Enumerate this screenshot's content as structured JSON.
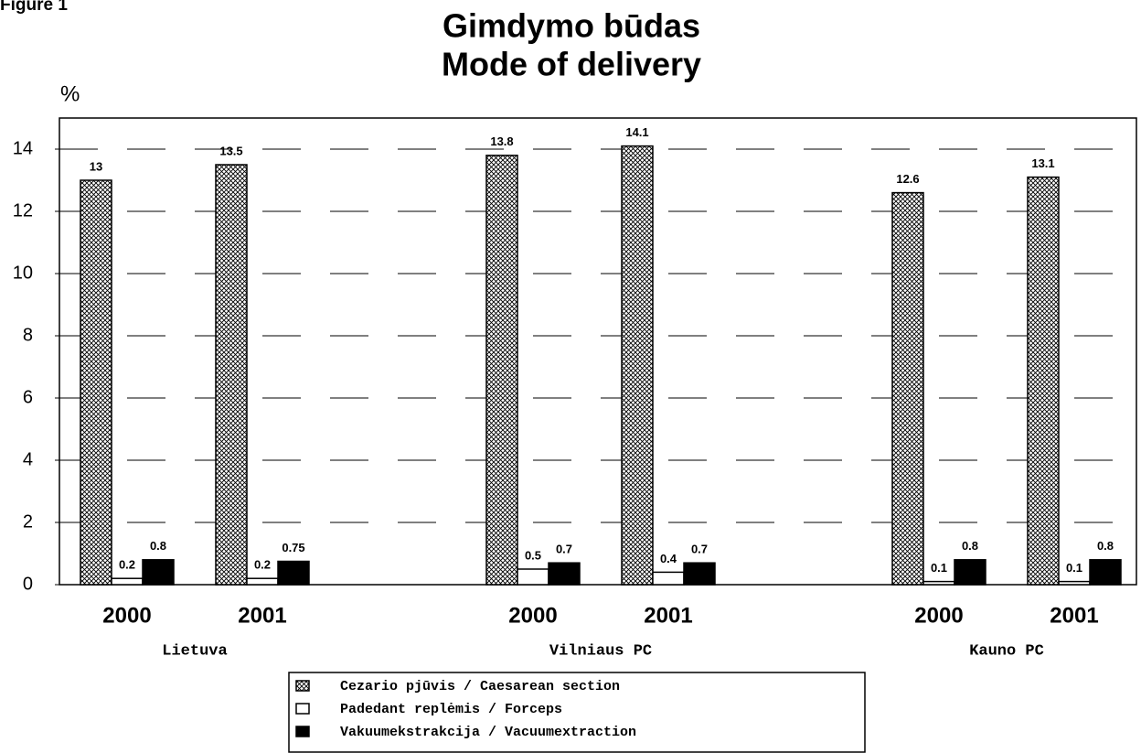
{
  "figure_label": "Figure 1",
  "chart_data": {
    "type": "bar",
    "title": "Gimdymo būdas",
    "subtitle": "Mode of delivery",
    "y_label": "%",
    "categories": [
      "2000",
      "2001",
      "2000",
      "2001",
      "2000",
      "2001"
    ],
    "groups": [
      "Lietuva",
      "Vilniaus PC",
      "Kauno PC"
    ],
    "series": [
      {
        "name": "Cezario pjūvis / Caesarean section",
        "color": "#ffffff",
        "pattern": "crosshatch",
        "values": [
          13,
          13.5,
          13.8,
          14.1,
          12.6,
          13.1
        ]
      },
      {
        "name": "Padedant replėmis / Forceps",
        "color": "#ffffff",
        "values": [
          0.2,
          0.2,
          0.5,
          0.4,
          0.1,
          0.1
        ]
      },
      {
        "name": "Vakuumekstrakcija / Vacuumextraction",
        "color": "#000000",
        "values": [
          0.8,
          0.75,
          0.7,
          0.7,
          0.8,
          0.8
        ]
      }
    ],
    "ylim": [
      0,
      15
    ],
    "yticks": [
      0,
      2,
      4,
      6,
      8,
      10,
      12,
      14
    ],
    "grid": true
  }
}
